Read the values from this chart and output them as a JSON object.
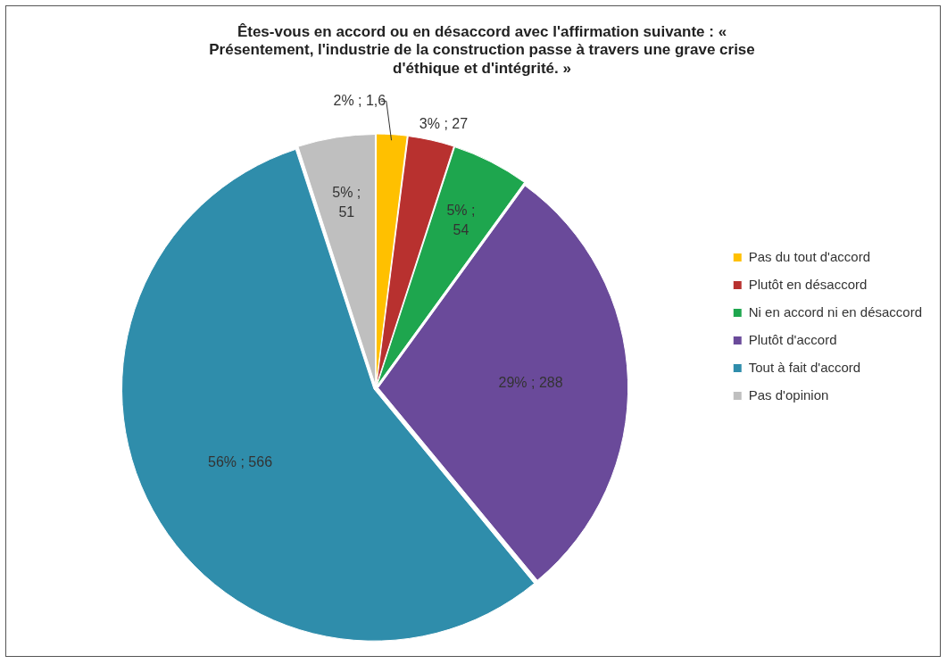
{
  "chart_data": {
    "type": "pie",
    "title": "Êtes-vous en accord ou en désaccord avec l'affirmation suivante : « Présentement, l'industrie de la construction passe à travers une grave crise d'éthique et d'intégrité. »",
    "categories": [
      "Pas du tout d'accord",
      "Plutôt en désaccord",
      "Ni en accord ni en désaccord",
      "Plutôt d'accord",
      "Tout à fait d'accord",
      "Pas d'opinion"
    ],
    "values": [
      2,
      3,
      5,
      29,
      56,
      5
    ],
    "colors": [
      "#ffc000",
      "#b8312f",
      "#1ea64e",
      "#6a4a9a",
      "#2f8dab",
      "#bfbfbf"
    ],
    "value_labels": [
      "2% ; 1,6",
      "3% ; 27",
      "5% ; 54",
      "29% ; 288",
      "56% ; 566",
      "5% ; 51"
    ],
    "legend": "right"
  }
}
